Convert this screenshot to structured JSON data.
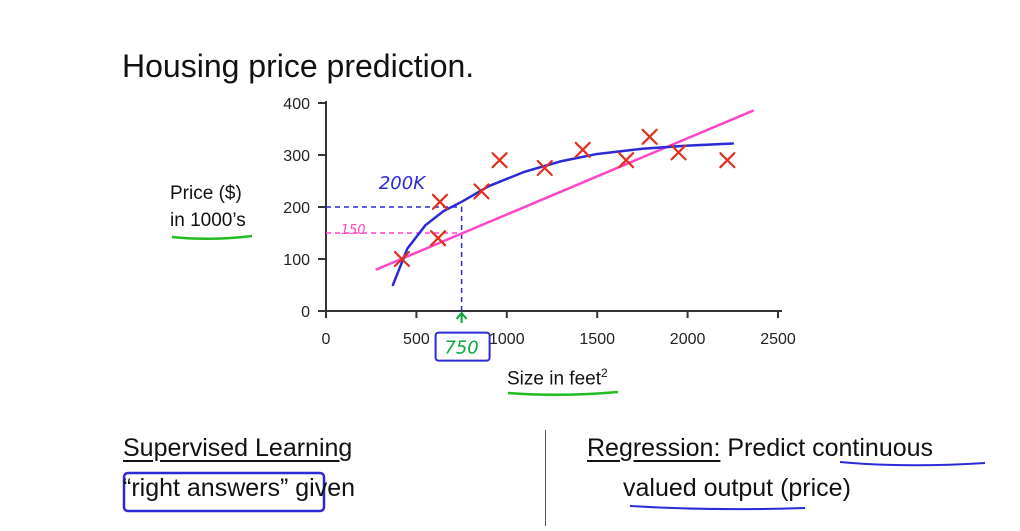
{
  "page": {
    "title": "Housing price prediction.",
    "ylabel_line1": "Price ($)",
    "ylabel_line2": "in 1000’s",
    "xlabel": "Size in feet",
    "xlabel_sup": "2",
    "left_heading": "Supervised Learning",
    "left_line2_a": "“right answers”",
    "left_line2_b": "given",
    "right_heading": "Regression:",
    "right_line1_rest": "Predict continuous",
    "right_line2": "valued output (price)"
  },
  "chart_data": {
    "type": "scatter",
    "xlim": [
      0,
      2500
    ],
    "ylim": [
      0,
      400
    ],
    "x_ticks": [
      0,
      500,
      1000,
      1500,
      2000,
      2500
    ],
    "y_ticks": [
      0,
      100,
      200,
      300,
      400
    ],
    "series": [
      {
        "kind": "points",
        "marker": "x",
        "color": "#e0301e",
        "points": [
          [
            420,
            100
          ],
          [
            620,
            140
          ],
          [
            630,
            210
          ],
          [
            860,
            230
          ],
          [
            960,
            290
          ],
          [
            1210,
            275
          ],
          [
            1420,
            310
          ],
          [
            1660,
            290
          ],
          [
            1790,
            335
          ],
          [
            1950,
            305
          ],
          [
            2220,
            290
          ]
        ]
      },
      {
        "kind": "line",
        "color": "#ff44c8",
        "points": [
          [
            280,
            80
          ],
          [
            2360,
            385
          ]
        ]
      },
      {
        "kind": "line",
        "color": "#2a2ad8",
        "points": [
          [
            370,
            50
          ],
          [
            450,
            120
          ],
          [
            550,
            165
          ],
          [
            650,
            192
          ],
          [
            750,
            210
          ],
          [
            900,
            240
          ],
          [
            1100,
            268
          ],
          [
            1300,
            288
          ],
          [
            1500,
            302
          ],
          [
            1750,
            312
          ],
          [
            2000,
            318
          ],
          [
            2250,
            322
          ]
        ]
      }
    ],
    "annotations": [
      {
        "text": "200K",
        "color": "#2a2ad8",
        "x": 420,
        "y": 235
      },
      {
        "text": "150",
        "color": "#ff44c8",
        "x": 150,
        "y": 148
      },
      {
        "text": "750",
        "color": "#0aa838",
        "x": 750,
        "y": -82
      }
    ],
    "guides": [
      {
        "color": "#2a2ad8",
        "from": [
          0,
          200
        ],
        "to": [
          750,
          200
        ]
      },
      {
        "color": "#2a2ad8",
        "from": [
          750,
          200
        ],
        "to": [
          750,
          0
        ]
      },
      {
        "color": "#ff44c8",
        "from": [
          0,
          150
        ],
        "to": [
          750,
          150
        ]
      }
    ]
  }
}
